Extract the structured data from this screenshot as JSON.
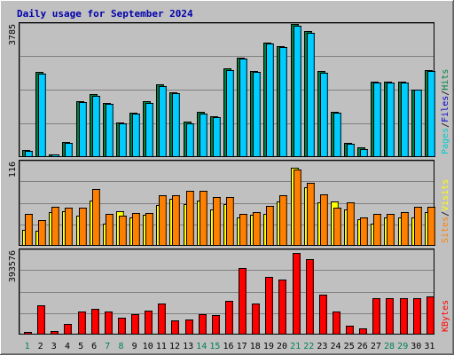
{
  "title": "Daily usage for September 2024",
  "chart_data": {
    "type": "bar",
    "days": [
      "1",
      "2",
      "3",
      "4",
      "5",
      "6",
      "7",
      "8",
      "9",
      "10",
      "11",
      "12",
      "13",
      "14",
      "15",
      "16",
      "17",
      "18",
      "19",
      "20",
      "21",
      "22",
      "23",
      "24",
      "25",
      "26",
      "27",
      "28",
      "29",
      "30",
      "31"
    ],
    "weekend_days": [
      "1",
      "7",
      "8",
      "14",
      "15",
      "21",
      "22",
      "28",
      "29"
    ],
    "panels": [
      {
        "id": "hits_files_pages",
        "ymax_label": "3785",
        "ylim": [
          0,
          3785
        ],
        "side_labels": [
          {
            "text": "Pages",
            "color": "#00cccc"
          },
          {
            "text": "/",
            "color": "#000000"
          },
          {
            "text": "Files",
            "color": "#0000cc"
          },
          {
            "text": "/",
            "color": "#000000"
          },
          {
            "text": "Hits",
            "color": "#008040"
          }
        ],
        "series": [
          {
            "name": "Hits",
            "color": "#008040",
            "values": [
              190,
              2450,
              60,
              420,
              1620,
              1820,
              1550,
              980,
              1280,
              1620,
              2110,
              1870,
              1010,
              1290,
              1160,
              2560,
              2880,
              2500,
              3320,
              3220,
              3870,
              3650,
              2490,
              1300,
              390,
              260,
              2180,
              2170,
              2170,
              1950,
              2510
            ]
          },
          {
            "name": "Files",
            "color": "#00ccff",
            "values": [
              160,
              2400,
              40,
              390,
              1590,
              1760,
              1520,
              950,
              1240,
              1560,
              2050,
              1830,
              970,
              1250,
              1130,
              2520,
              2840,
              2460,
              3280,
              3180,
              3820,
              3610,
              2440,
              1270,
              350,
              220,
              2160,
              2150,
              2150,
              1940,
              2490
            ]
          }
        ]
      },
      {
        "id": "visits_sites",
        "ymax_label": "116",
        "ylim": [
          0,
          116
        ],
        "side_labels": [
          {
            "text": "Sites",
            "color": "#ff8000"
          },
          {
            "text": "/",
            "color": "#000000"
          },
          {
            "text": "Visits",
            "color": "#ffff00"
          }
        ],
        "series": [
          {
            "name": "Visits",
            "color": "#ffff00",
            "values": [
              22,
              21,
              47,
              48,
              42,
              64,
              30,
              49,
              39,
              43,
              57,
              66,
              59,
              64,
              51,
              59,
              40,
              43,
              44,
              62,
              111,
              83,
              61,
              62,
              51,
              37,
              30,
              40,
              40,
              40,
              47
            ]
          },
          {
            "name": "Sites",
            "color": "#ff8000",
            "values": [
              45,
              36,
              55,
              54,
              53,
              80,
              44,
              42,
              46,
              46,
              71,
              72,
              78,
              78,
              69,
              69,
              44,
              47,
              56,
              71,
              108,
              89,
              73,
              54,
              61,
              40,
              45,
              44,
              47,
              55,
              55
            ]
          }
        ]
      },
      {
        "id": "kbytes",
        "ymax_label": "393576",
        "ylim": [
          0,
          393576
        ],
        "side_labels": [
          {
            "text": "KBytes",
            "color": "#ff0000"
          }
        ],
        "series": [
          {
            "name": "KBytes",
            "color": "#ff0000",
            "values": [
              5000,
              140000,
              12000,
              48000,
              110000,
              123000,
              106000,
              80000,
              94000,
              114000,
              146000,
              67000,
              70000,
              95000,
              90000,
              158000,
              322000,
              148000,
              275000,
              265000,
              392000,
              363000,
              190000,
              108000,
              38000,
              28000,
              175000,
              175000,
              175000,
              175000,
              180000
            ]
          }
        ]
      }
    ]
  }
}
